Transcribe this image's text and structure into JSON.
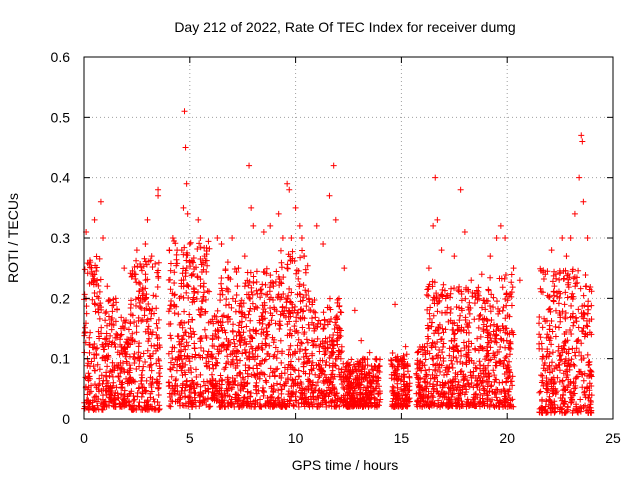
{
  "chart_data": {
    "type": "scatter",
    "title": "Day 212 of 2022, Rate Of TEC Index for receiver dumg",
    "xlabel": "GPS time / hours",
    "ylabel": "ROTI / TECUs",
    "xlim": [
      0,
      25
    ],
    "ylim": [
      0,
      0.6
    ],
    "x_ticks": [
      "0",
      "5",
      "10",
      "15",
      "20",
      "25"
    ],
    "y_ticks": [
      "0",
      "0.1",
      "0.2",
      "0.3",
      "0.4",
      "0.5",
      "0.6"
    ],
    "grid": true,
    "marker": "+",
    "color": "#ff0000",
    "series": [
      {
        "points": [
          [
            0.1,
            0.31
          ],
          [
            0.3,
            0.26
          ],
          [
            0.5,
            0.33
          ],
          [
            0.8,
            0.36
          ],
          [
            0.9,
            0.3
          ],
          [
            1.1,
            0.22
          ],
          [
            1.5,
            0.2
          ],
          [
            1.9,
            0.25
          ],
          [
            2.3,
            0.24
          ],
          [
            2.5,
            0.28
          ],
          [
            2.9,
            0.29
          ],
          [
            3.0,
            0.33
          ],
          [
            3.2,
            0.27
          ],
          [
            3.5,
            0.38
          ],
          [
            3.5,
            0.37
          ],
          [
            4.2,
            0.3
          ],
          [
            4.4,
            0.28
          ],
          [
            4.6,
            0.22
          ],
          [
            4.7,
            0.35
          ],
          [
            4.75,
            0.51
          ],
          [
            4.8,
            0.45
          ],
          [
            4.85,
            0.39
          ],
          [
            4.9,
            0.34
          ],
          [
            5.0,
            0.29
          ],
          [
            5.4,
            0.33
          ],
          [
            5.5,
            0.3
          ],
          [
            5.7,
            0.27
          ],
          [
            6.3,
            0.3
          ],
          [
            6.5,
            0.29
          ],
          [
            6.8,
            0.26
          ],
          [
            7.0,
            0.3
          ],
          [
            7.3,
            0.25
          ],
          [
            7.6,
            0.27
          ],
          [
            7.8,
            0.42
          ],
          [
            7.9,
            0.35
          ],
          [
            8.0,
            0.32
          ],
          [
            8.5,
            0.31
          ],
          [
            8.8,
            0.32
          ],
          [
            9.2,
            0.34
          ],
          [
            9.4,
            0.3
          ],
          [
            9.6,
            0.39
          ],
          [
            9.7,
            0.38
          ],
          [
            9.8,
            0.3
          ],
          [
            10.0,
            0.35
          ],
          [
            10.2,
            0.32
          ],
          [
            10.3,
            0.3
          ],
          [
            10.4,
            0.27
          ],
          [
            11.0,
            0.32
          ],
          [
            11.3,
            0.29
          ],
          [
            11.6,
            0.37
          ],
          [
            11.8,
            0.42
          ],
          [
            11.9,
            0.33
          ],
          [
            12.3,
            0.25
          ],
          [
            12.8,
            0.18
          ],
          [
            13.1,
            0.13
          ],
          [
            13.5,
            0.11
          ],
          [
            13.9,
            0.08
          ],
          [
            14.7,
            0.19
          ],
          [
            15.2,
            0.12
          ],
          [
            16.0,
            0.12
          ],
          [
            16.3,
            0.25
          ],
          [
            16.5,
            0.32
          ],
          [
            16.6,
            0.4
          ],
          [
            16.7,
            0.33
          ],
          [
            16.9,
            0.28
          ],
          [
            17.5,
            0.27
          ],
          [
            17.8,
            0.38
          ],
          [
            18.0,
            0.31
          ],
          [
            18.3,
            0.23
          ],
          [
            18.8,
            0.24
          ],
          [
            19.2,
            0.27
          ],
          [
            19.5,
            0.3
          ],
          [
            19.7,
            0.32
          ],
          [
            19.9,
            0.3
          ],
          [
            20.3,
            0.25
          ],
          [
            20.6,
            0.23
          ],
          [
            21.8,
            0.24
          ],
          [
            22.1,
            0.28
          ],
          [
            22.3,
            0.24
          ],
          [
            22.6,
            0.3
          ],
          [
            22.8,
            0.27
          ],
          [
            23.0,
            0.3
          ],
          [
            23.2,
            0.34
          ],
          [
            23.4,
            0.4
          ],
          [
            23.5,
            0.47
          ],
          [
            23.55,
            0.46
          ],
          [
            23.6,
            0.36
          ],
          [
            23.8,
            0.3
          ]
        ]
      }
    ],
    "coverage_bands": [
      {
        "x": [
          0.0,
          0.9
        ],
        "y_min": 0.015,
        "y_max": 0.27
      },
      {
        "x": [
          0.9,
          1.6
        ],
        "y_min": 0.02,
        "y_max": 0.2
      },
      {
        "x": [
          1.6,
          2.2
        ],
        "y_min": 0.02,
        "y_max": 0.17
      },
      {
        "x": [
          2.2,
          3.6
        ],
        "y_min": 0.015,
        "y_max": 0.27
      },
      {
        "x": [
          4.0,
          6.0
        ],
        "y_min": 0.02,
        "y_max": 0.3
      },
      {
        "x": [
          6.0,
          6.4
        ],
        "y_min": 0.03,
        "y_max": 0.18
      },
      {
        "x": [
          6.4,
          9.0
        ],
        "y_min": 0.02,
        "y_max": 0.25
      },
      {
        "x": [
          9.0,
          10.6
        ],
        "y_min": 0.02,
        "y_max": 0.28
      },
      {
        "x": [
          10.6,
          12.2
        ],
        "y_min": 0.02,
        "y_max": 0.2
      },
      {
        "x": [
          12.2,
          14.0
        ],
        "y_min": 0.02,
        "y_max": 0.1
      },
      {
        "x": [
          14.5,
          15.4
        ],
        "y_min": 0.02,
        "y_max": 0.11
      },
      {
        "x": [
          15.7,
          16.2
        ],
        "y_min": 0.02,
        "y_max": 0.12
      },
      {
        "x": [
          16.2,
          17.3
        ],
        "y_min": 0.02,
        "y_max": 0.23
      },
      {
        "x": [
          17.3,
          19.0
        ],
        "y_min": 0.02,
        "y_max": 0.22
      },
      {
        "x": [
          19.0,
          20.3
        ],
        "y_min": 0.02,
        "y_max": 0.24
      },
      {
        "x": [
          21.5,
          24.0
        ],
        "y_min": 0.01,
        "y_max": 0.25
      }
    ]
  }
}
